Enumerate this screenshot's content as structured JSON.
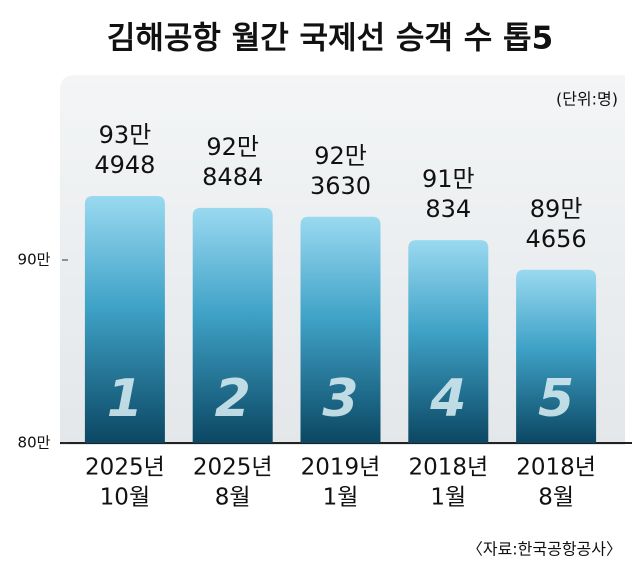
{
  "chart_data": {
    "type": "bar",
    "title": "김해공항 월간 국제선 승객 수 톱5",
    "unit": "(단위:명)",
    "source": "〈자료:한국공항공사〉",
    "categories": [
      [
        "2025년",
        "10월"
      ],
      [
        "2025년",
        "8월"
      ],
      [
        "2019년",
        "1월"
      ],
      [
        "2018년",
        "1월"
      ],
      [
        "2018년",
        "8월"
      ]
    ],
    "values": [
      934948,
      928484,
      923630,
      910834,
      894656
    ],
    "value_labels": [
      [
        "93만",
        "4948"
      ],
      [
        "92만",
        "8484"
      ],
      [
        "92만",
        "3630"
      ],
      [
        "91만",
        "834"
      ],
      [
        "89만",
        "4656"
      ]
    ],
    "ranks": [
      1,
      2,
      3,
      4,
      5
    ],
    "ylim": [
      800000,
      1000000
    ],
    "yticks": [
      {
        "value": 800000,
        "label": "80만"
      },
      {
        "value": 900000,
        "label": "90만"
      }
    ]
  }
}
